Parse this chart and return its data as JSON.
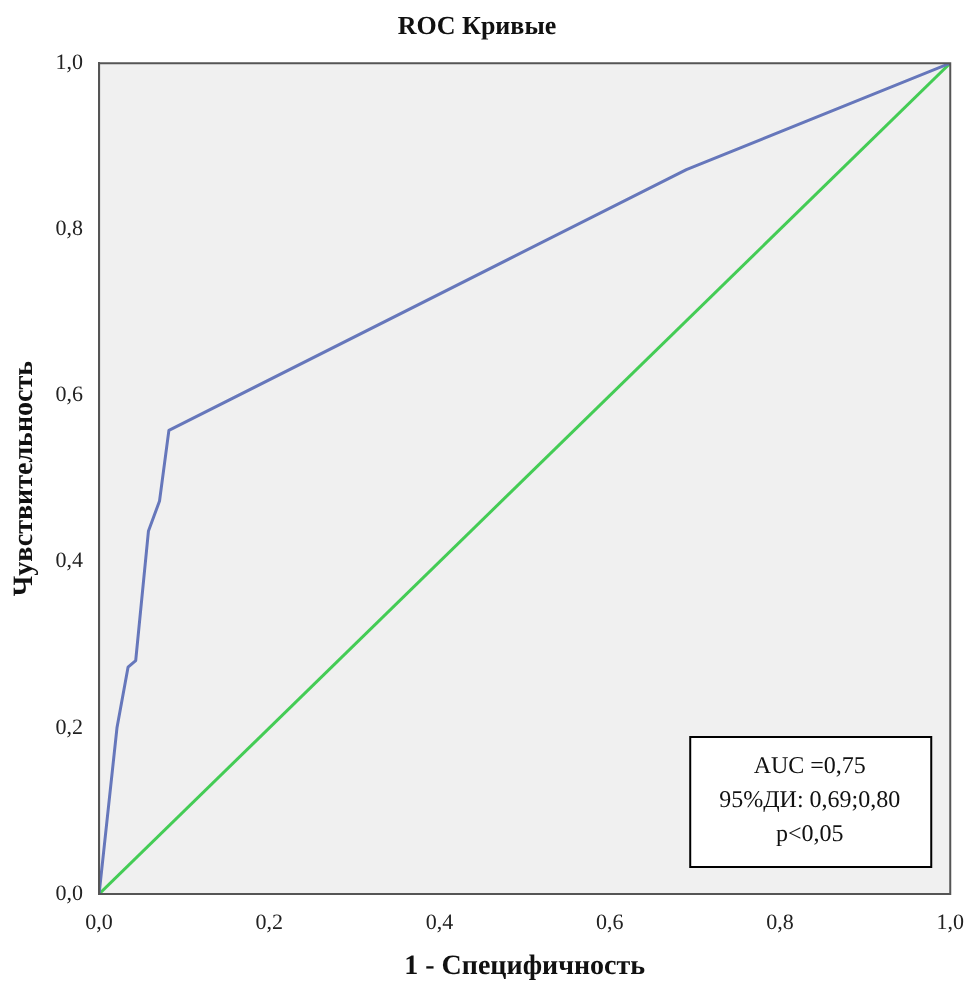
{
  "chart_data": {
    "type": "line",
    "title": "ROC Кривые",
    "xlabel": "1 - Специфичность",
    "ylabel": "Чувствительность",
    "series": [
      {
        "color": "#6677bb",
        "x": [
          0,
          0.021,
          0.034,
          0.043,
          0.058,
          0.071,
          0.082,
          0.69,
          1
        ],
        "values": [
          0,
          0.2,
          0.273,
          0.281,
          0.437,
          0.473,
          0.558,
          0.872,
          1
        ]
      },
      {
        "color": "#44cc55",
        "x": [
          0,
          1
        ],
        "values": [
          0,
          1
        ]
      }
    ],
    "xlim": [
      0,
      1
    ],
    "ylim": [
      0,
      1
    ],
    "xticks": [
      {
        "value": 0,
        "label": "0,0"
      },
      {
        "value": 0.2,
        "label": "0,2"
      },
      {
        "value": 0.4,
        "label": "0,4"
      },
      {
        "value": 0.6,
        "label": "0,6"
      },
      {
        "value": 0.8,
        "label": "0,8"
      },
      {
        "value": 1,
        "label": "1,0"
      }
    ],
    "yticks": [
      {
        "value": 0,
        "label": "0,0"
      },
      {
        "value": 0.2,
        "label": "0,2"
      },
      {
        "value": 0.4,
        "label": "0,4"
      },
      {
        "value": 0.6,
        "label": "0,6"
      },
      {
        "value": 0.8,
        "label": "0,8"
      },
      {
        "value": 1,
        "label": "1,0"
      }
    ],
    "annotations": [
      "AUC =0,75",
      "95%ДИ: 0,69;0,80",
      "p<0,05"
    ],
    "grid": false,
    "legend": false,
    "marker": "none",
    "line_style": "solid"
  }
}
